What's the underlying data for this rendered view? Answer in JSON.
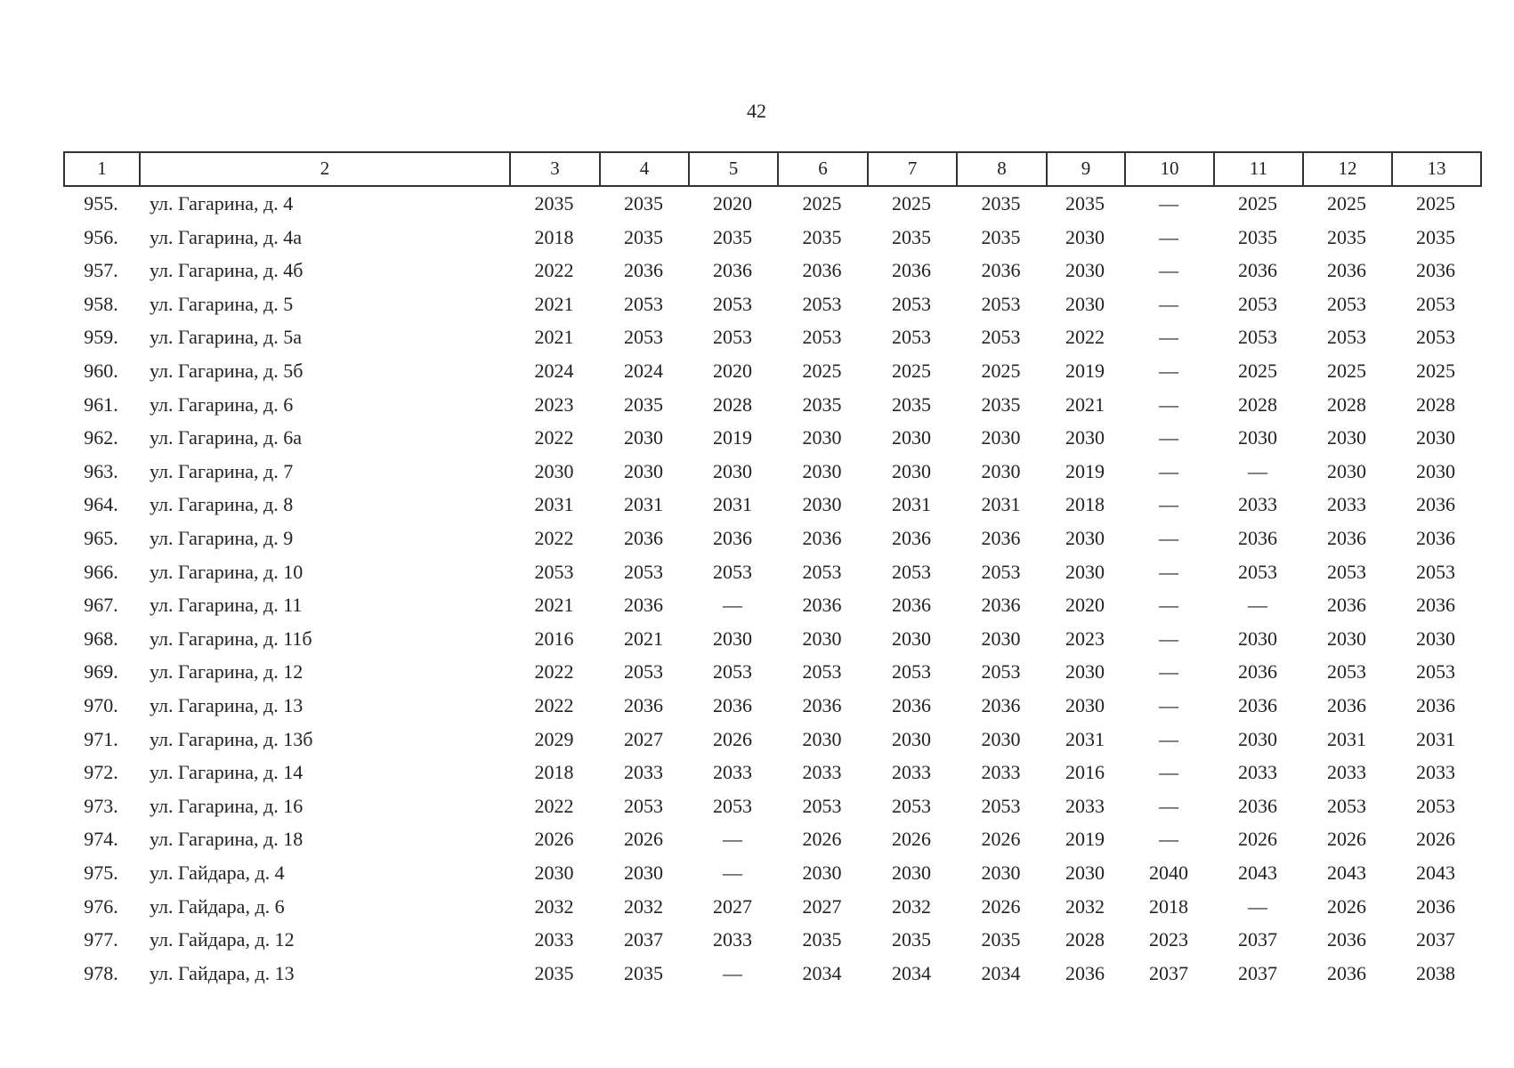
{
  "page_number": "42",
  "table": {
    "header": [
      "1",
      "2",
      "3",
      "4",
      "5",
      "6",
      "7",
      "8",
      "9",
      "10",
      "11",
      "12",
      "13"
    ],
    "rows": [
      [
        "955.",
        "ул. Гагарина, д. 4",
        2035,
        2035,
        2020,
        2025,
        2025,
        2035,
        2035,
        "—",
        2025,
        2025,
        2025
      ],
      [
        "956.",
        "ул. Гагарина, д. 4а",
        2018,
        2035,
        2035,
        2035,
        2035,
        2035,
        2030,
        "—",
        2035,
        2035,
        2035
      ],
      [
        "957.",
        "ул. Гагарина, д. 4б",
        2022,
        2036,
        2036,
        2036,
        2036,
        2036,
        2030,
        "—",
        2036,
        2036,
        2036
      ],
      [
        "958.",
        "ул. Гагарина, д. 5",
        2021,
        2053,
        2053,
        2053,
        2053,
        2053,
        2030,
        "—",
        2053,
        2053,
        2053
      ],
      [
        "959.",
        "ул. Гагарина, д. 5а",
        2021,
        2053,
        2053,
        2053,
        2053,
        2053,
        2022,
        "—",
        2053,
        2053,
        2053
      ],
      [
        "960.",
        "ул. Гагарина, д. 5б",
        2024,
        2024,
        2020,
        2025,
        2025,
        2025,
        2019,
        "—",
        2025,
        2025,
        2025
      ],
      [
        "961.",
        "ул. Гагарина, д. 6",
        2023,
        2035,
        2028,
        2035,
        2035,
        2035,
        2021,
        "—",
        2028,
        2028,
        2028
      ],
      [
        "962.",
        "ул. Гагарина, д. 6а",
        2022,
        2030,
        2019,
        2030,
        2030,
        2030,
        2030,
        "—",
        2030,
        2030,
        2030
      ],
      [
        "963.",
        "ул. Гагарина, д. 7",
        2030,
        2030,
        2030,
        2030,
        2030,
        2030,
        2019,
        "—",
        "—",
        2030,
        2030
      ],
      [
        "964.",
        "ул. Гагарина, д. 8",
        2031,
        2031,
        2031,
        2030,
        2031,
        2031,
        2018,
        "—",
        2033,
        2033,
        2036
      ],
      [
        "965.",
        "ул. Гагарина, д. 9",
        2022,
        2036,
        2036,
        2036,
        2036,
        2036,
        2030,
        "—",
        2036,
        2036,
        2036
      ],
      [
        "966.",
        "ул. Гагарина, д. 10",
        2053,
        2053,
        2053,
        2053,
        2053,
        2053,
        2030,
        "—",
        2053,
        2053,
        2053
      ],
      [
        "967.",
        "ул. Гагарина, д. 11",
        2021,
        2036,
        "—",
        2036,
        2036,
        2036,
        2020,
        "—",
        "—",
        2036,
        2036
      ],
      [
        "968.",
        "ул. Гагарина, д. 11б",
        2016,
        2021,
        2030,
        2030,
        2030,
        2030,
        2023,
        "—",
        2030,
        2030,
        2030
      ],
      [
        "969.",
        "ул. Гагарина, д. 12",
        2022,
        2053,
        2053,
        2053,
        2053,
        2053,
        2030,
        "—",
        2036,
        2053,
        2053
      ],
      [
        "970.",
        "ул. Гагарина, д. 13",
        2022,
        2036,
        2036,
        2036,
        2036,
        2036,
        2030,
        "—",
        2036,
        2036,
        2036
      ],
      [
        "971.",
        "ул. Гагарина, д. 13б",
        2029,
        2027,
        2026,
        2030,
        2030,
        2030,
        2031,
        "—",
        2030,
        2031,
        2031
      ],
      [
        "972.",
        "ул. Гагарина, д. 14",
        2018,
        2033,
        2033,
        2033,
        2033,
        2033,
        2016,
        "—",
        2033,
        2033,
        2033
      ],
      [
        "973.",
        "ул. Гагарина, д. 16",
        2022,
        2053,
        2053,
        2053,
        2053,
        2053,
        2033,
        "—",
        2036,
        2053,
        2053
      ],
      [
        "974.",
        "ул. Гагарина, д. 18",
        2026,
        2026,
        "—",
        2026,
        2026,
        2026,
        2019,
        "—",
        2026,
        2026,
        2026
      ],
      [
        "975.",
        "ул. Гайдара, д. 4",
        2030,
        2030,
        "—",
        2030,
        2030,
        2030,
        2030,
        2040,
        2043,
        2043,
        2043
      ],
      [
        "976.",
        "ул. Гайдара, д. 6",
        2032,
        2032,
        2027,
        2027,
        2032,
        2026,
        2032,
        2018,
        "—",
        2026,
        2036
      ],
      [
        "977.",
        "ул. Гайдара, д. 12",
        2033,
        2037,
        2033,
        2035,
        2035,
        2035,
        2028,
        2023,
        2037,
        2036,
        2037
      ],
      [
        "978.",
        "ул. Гайдара, д. 13",
        2035,
        2035,
        "—",
        2034,
        2034,
        2034,
        2036,
        2037,
        2037,
        2036,
        2038
      ]
    ]
  }
}
